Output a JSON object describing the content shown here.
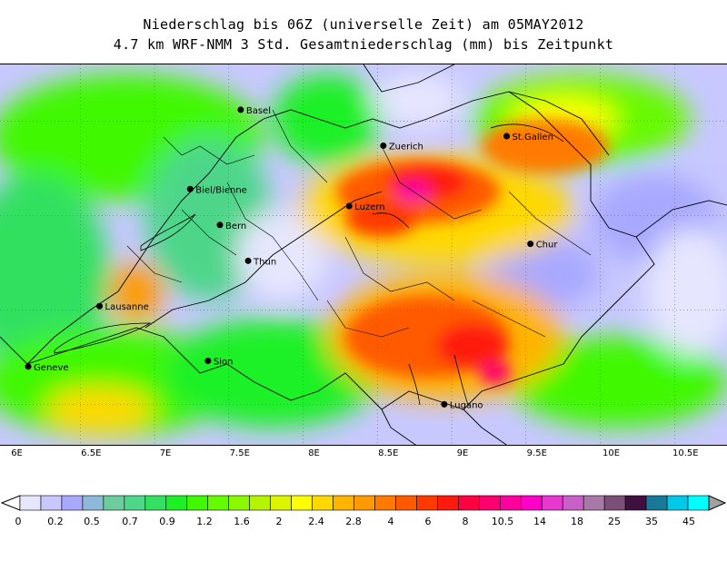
{
  "title_line1": "Niederschlag bis 06Z (universelle Zeit) am 05MAY2012",
  "title_line2": "4.7 km WRF-NMM 3 Std. Gesamtniederschlag (mm) bis Zeitpunkt",
  "x_ticks": [
    "6E",
    "6.5E",
    "7E",
    "7.5E",
    "8E",
    "8.5E",
    "9E",
    "9.5E",
    "10E",
    "10.5E"
  ],
  "cities": [
    {
      "name": "Basel",
      "lon": 7.58,
      "lat": 47.56
    },
    {
      "name": "Zuerich",
      "lon": 8.54,
      "lat": 47.37
    },
    {
      "name": "St.Gallen",
      "lon": 9.37,
      "lat": 47.42
    },
    {
      "name": "Biel/Bienne",
      "lon": 7.24,
      "lat": 47.14
    },
    {
      "name": "Luzern",
      "lon": 8.31,
      "lat": 47.05
    },
    {
      "name": "Bern",
      "lon": 7.44,
      "lat": 46.95
    },
    {
      "name": "Chur",
      "lon": 9.53,
      "lat": 46.85
    },
    {
      "name": "Thun",
      "lon": 7.63,
      "lat": 46.76
    },
    {
      "name": "Lausanne",
      "lon": 6.63,
      "lat": 46.52
    },
    {
      "name": "Geneve",
      "lon": 6.15,
      "lat": 46.2
    },
    {
      "name": "Sion",
      "lon": 7.36,
      "lat": 46.23
    },
    {
      "name": "Lugano",
      "lon": 8.95,
      "lat": 46.0
    }
  ],
  "colorbar": {
    "labels": [
      "0",
      "0.2",
      "0.5",
      "0.7",
      "0.9",
      "1.2",
      "1.6",
      "2",
      "2.4",
      "2.8",
      "4",
      "6",
      "8",
      "10.5",
      "14",
      "18",
      "25",
      "35",
      "45"
    ],
    "colors": [
      "#e6e6ff",
      "#c8c8ff",
      "#a8a8ff",
      "#8fb8d8",
      "#6ccc9c",
      "#4ed68a",
      "#33e060",
      "#1ef028",
      "#40f800",
      "#66fa00",
      "#8cf800",
      "#b4f400",
      "#dcf400",
      "#ffff00",
      "#ffd800",
      "#ffb400",
      "#ff9a00",
      "#ff7a00",
      "#ff5a00",
      "#ff3a00",
      "#ff1a10",
      "#ff0040",
      "#ff0070",
      "#ff00a0",
      "#ff00c8",
      "#e838d0",
      "#c860c8",
      "#a878a8",
      "#7a5078",
      "#401040",
      "#1a7898",
      "#00c8e8",
      "#00ffff"
    ]
  }
}
